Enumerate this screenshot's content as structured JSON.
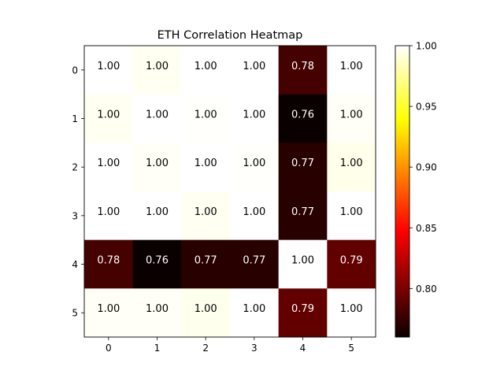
{
  "chart_data": {
    "type": "heatmap",
    "title": "ETH Correlation Heatmap",
    "xlabel": "",
    "ylabel": "",
    "x_categories": [
      "0",
      "1",
      "2",
      "3",
      "4",
      "5"
    ],
    "y_categories": [
      "0",
      "1",
      "2",
      "3",
      "4",
      "5"
    ],
    "values": [
      [
        1.0,
        0.997,
        1.0,
        1.0,
        0.78,
        1.0
      ],
      [
        0.997,
        1.0,
        0.999,
        1.0,
        0.76,
        0.998
      ],
      [
        1.0,
        0.998,
        1.0,
        0.999,
        0.77,
        0.995
      ],
      [
        1.0,
        1.0,
        0.997,
        1.0,
        0.77,
        1.0
      ],
      [
        0.78,
        0.76,
        0.77,
        0.77,
        1.0,
        0.79
      ],
      [
        0.998,
        0.998,
        0.996,
        1.0,
        0.79,
        1.0
      ]
    ],
    "value_labels": [
      [
        "1.00",
        "1.00",
        "1.00",
        "1.00",
        "0.78",
        "1.00"
      ],
      [
        "1.00",
        "1.00",
        "1.00",
        "1.00",
        "0.76",
        "1.00"
      ],
      [
        "1.00",
        "1.00",
        "1.00",
        "1.00",
        "0.77",
        "1.00"
      ],
      [
        "1.00",
        "1.00",
        "1.00",
        "1.00",
        "0.77",
        "1.00"
      ],
      [
        "0.78",
        "0.76",
        "0.77",
        "0.77",
        "1.00",
        "0.79"
      ],
      [
        "1.00",
        "1.00",
        "1.00",
        "1.00",
        "0.79",
        "1.00"
      ]
    ],
    "colormap": "hot",
    "vmin": 0.76,
    "vmax": 1.0,
    "colorbar_ticks": [
      "1.00",
      "0.95",
      "0.90",
      "0.85",
      "0.80"
    ],
    "colorbar_tick_values": [
      1.0,
      0.95,
      0.9,
      0.85,
      0.8
    ],
    "text_color_dark_cells": "#ffffff",
    "text_color_light_cells": "#000000"
  }
}
